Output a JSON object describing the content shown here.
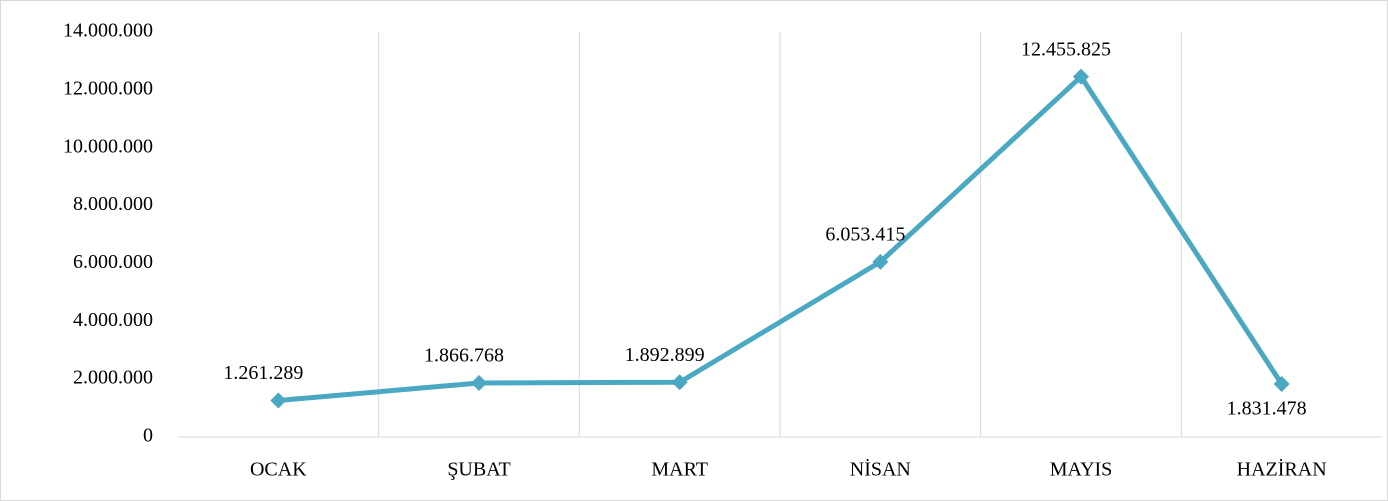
{
  "chart_data": {
    "type": "line",
    "categories": [
      "OCAK",
      "ŞUBAT",
      "MART",
      "NİSAN",
      "MAYIS",
      "HAZİRAN"
    ],
    "values": [
      1261289,
      1866768,
      1892899,
      6053415,
      12455825,
      1831478
    ],
    "value_labels": [
      "1.261.289",
      "1.866.768",
      "1.892.899",
      "6.053.415",
      "12.455.825",
      "1.831.478"
    ],
    "color": "#4aa8c2",
    "ylim": [
      0,
      14000000
    ],
    "yticks": [
      0,
      {
        "value": 2000000,
        "label": "2.000.000"
      },
      {
        "value": 4000000,
        "label": "4.000.000"
      },
      {
        "value": 6000000,
        "label": "6.000.000"
      },
      {
        "value": 8000000,
        "label": "8.000.000"
      },
      {
        "value": 10000000,
        "label": "10.000.000"
      },
      {
        "value": 12000000,
        "label": "12.000.000"
      },
      {
        "value": 14000000,
        "label": "14.000.000"
      }
    ]
  }
}
